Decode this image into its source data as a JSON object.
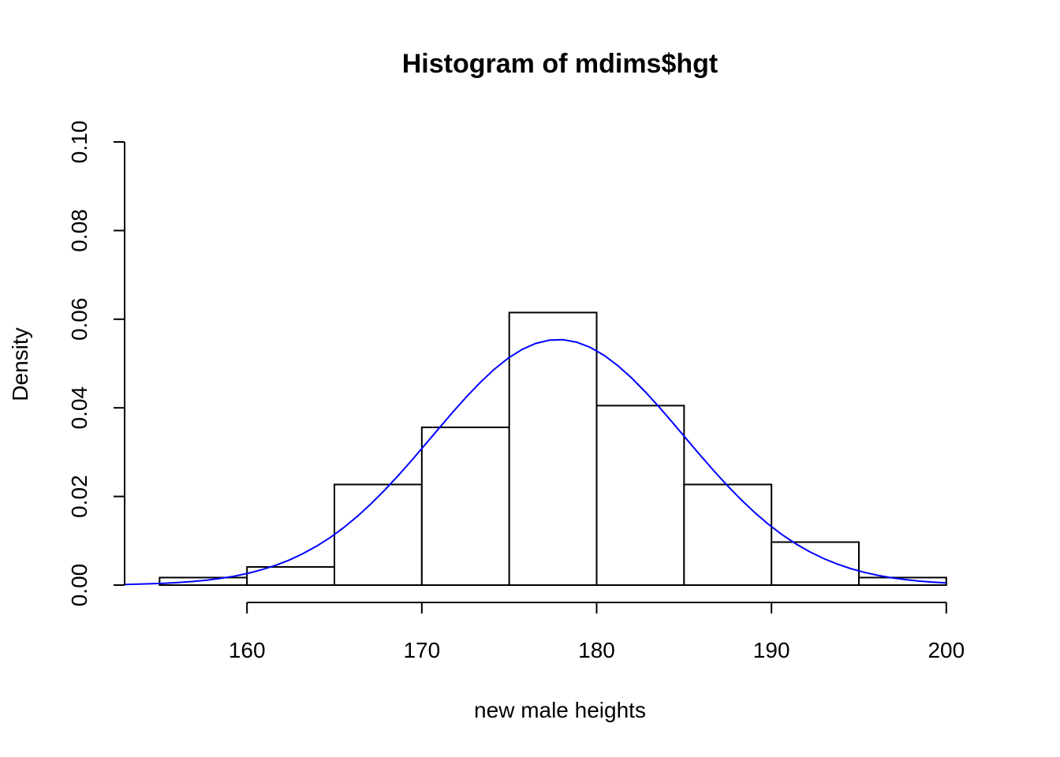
{
  "chart_data": {
    "type": "bar",
    "title": "Histogram of mdims$hgt",
    "xlabel": "new male heights",
    "ylabel": "Density",
    "xlim": [
      153,
      201
    ],
    "ylim": [
      0,
      0.1
    ],
    "x_ticks": [
      "160",
      "170",
      "180",
      "190",
      "200"
    ],
    "y_ticks": [
      "0.00",
      "0.02",
      "0.04",
      "0.06",
      "0.08",
      "0.10"
    ],
    "bins": [
      {
        "from": 155,
        "to": 160,
        "density": 0.0017
      },
      {
        "from": 160,
        "to": 165,
        "density": 0.0041
      },
      {
        "from": 165,
        "to": 170,
        "density": 0.0227
      },
      {
        "from": 170,
        "to": 175,
        "density": 0.0356
      },
      {
        "from": 175,
        "to": 180,
        "density": 0.0615
      },
      {
        "from": 180,
        "to": 185,
        "density": 0.0405
      },
      {
        "from": 185,
        "to": 190,
        "density": 0.0227
      },
      {
        "from": 190,
        "to": 195,
        "density": 0.0097
      },
      {
        "from": 195,
        "to": 200,
        "density": 0.0017
      }
    ],
    "curve": {
      "type": "normal-density",
      "mean": 177.8,
      "sd": 7.2,
      "x_from": 153,
      "x_to": 200,
      "color": "#0000ff"
    },
    "grid": false,
    "colors": {
      "bars": "#ffffff",
      "outline": "#000000"
    }
  }
}
